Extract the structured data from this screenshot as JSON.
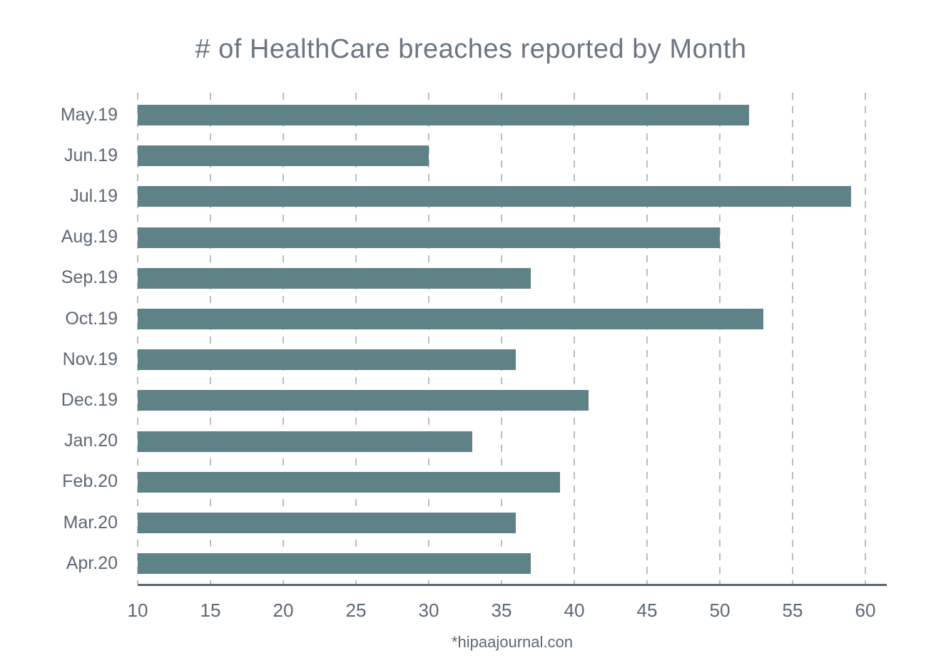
{
  "chart_data": {
    "type": "bar",
    "orientation": "horizontal",
    "title": "# of HealthCare breaches reported by Month",
    "categories": [
      "May.19",
      "Jun.19",
      "Jul.19",
      "Aug.19",
      "Sep.19",
      "Oct.19",
      "Nov.19",
      "Dec.19",
      "Jan.20",
      "Feb.20",
      "Mar.20",
      "Apr.20"
    ],
    "values": [
      52,
      30,
      59,
      50,
      37,
      53,
      36,
      41,
      33,
      39,
      36,
      37
    ],
    "x_ticks": [
      10,
      15,
      20,
      25,
      30,
      35,
      40,
      45,
      50,
      55,
      60
    ],
    "xlim": [
      10,
      61.5
    ],
    "xlabel": "",
    "ylabel": "",
    "grid": "vertical-dashed",
    "legend": "none",
    "source_note": "*hipaajournal.con",
    "bar_color": "#5f8287",
    "grid_color": "#b9bec3",
    "axis_line_color": "#5a6671",
    "title_color": "#6b7683",
    "label_color": "#5d6875"
  }
}
